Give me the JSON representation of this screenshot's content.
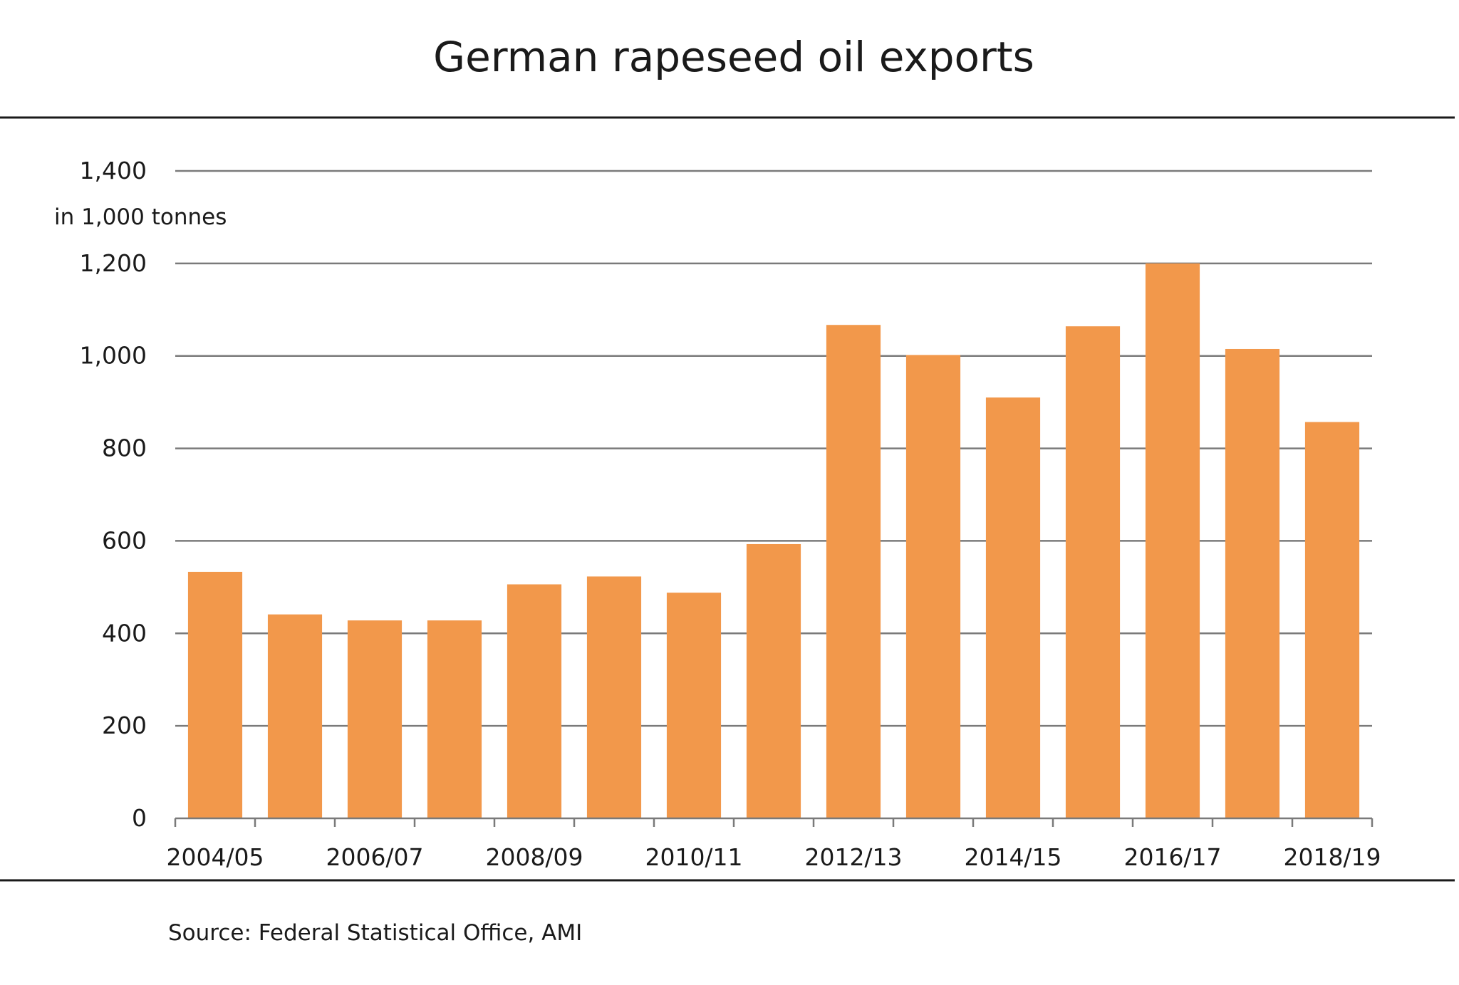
{
  "chart_data": {
    "type": "bar",
    "title": "German rapeseed oil exports",
    "ylabel": "in 1,000 tonnes",
    "xlabel": "",
    "source": "Source: Federal Statistical Office, AMI",
    "categories": [
      "2004/05",
      "2005/06",
      "2006/07",
      "2007/08",
      "2008/09",
      "2009/10",
      "2010/11",
      "2011/12",
      "2012/13",
      "2013/14",
      "2014/15",
      "2015/16",
      "2016/17",
      "2017/18",
      "2018/19"
    ],
    "x_tick_labels": [
      "2004/05",
      "2006/07",
      "2008/09",
      "2010/11",
      "2012/13",
      "2014/15",
      "2016/17",
      "2018/19"
    ],
    "values": [
      533,
      441,
      428,
      428,
      506,
      523,
      488,
      593,
      1067,
      1002,
      910,
      1064,
      1200,
      1015,
      857
    ],
    "ylim": [
      0,
      1400
    ],
    "y_ticks": [
      0,
      200,
      400,
      600,
      800,
      1000,
      1200,
      1400
    ],
    "y_tick_labels": [
      "0",
      "200",
      "400",
      "600",
      "800",
      "1,000",
      "1,200",
      "1,400"
    ],
    "grid": true,
    "colors": {
      "bar": "#f2984b",
      "grid": "#7a7a7a",
      "text": "#1a1a1a"
    }
  }
}
